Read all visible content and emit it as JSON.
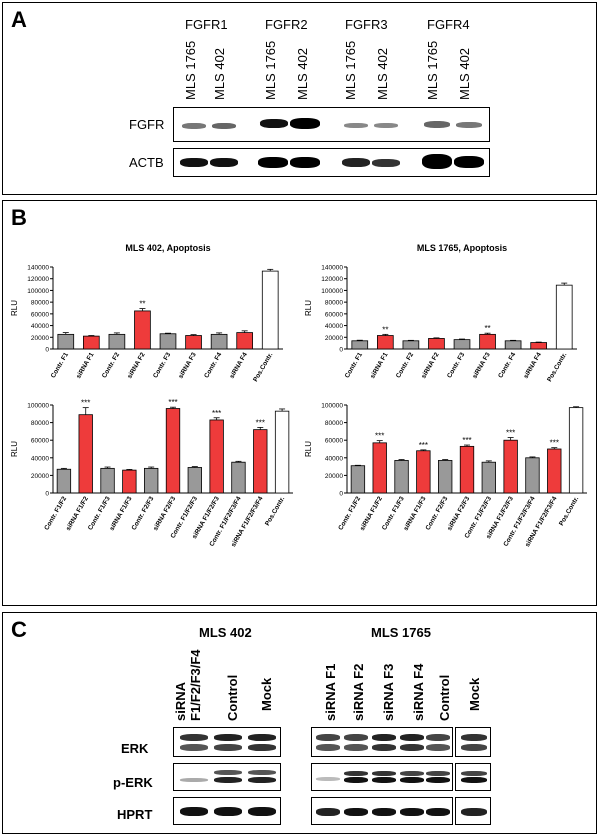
{
  "panelA": {
    "letter": "A",
    "groups": [
      "FGFR1",
      "FGFR2",
      "FGFR3",
      "FGFR4"
    ],
    "samples": [
      "MLS 1765",
      "MLS 402"
    ],
    "rows": [
      "FGFR",
      "ACTB"
    ]
  },
  "panelB": {
    "letter": "B"
  },
  "panelC": {
    "letter": "C",
    "left": {
      "title": "MLS 402",
      "lanes": [
        "siRNA F1/F2/F3/F4",
        "Control",
        "Mock"
      ]
    },
    "right": {
      "title": "MLS 1765",
      "lanes": [
        "siRNA F1",
        "siRNA F2",
        "siRNA F3",
        "siRNA F4",
        "Control",
        "Mock"
      ]
    },
    "rows": [
      "ERK",
      "p-ERK",
      "HPRT"
    ]
  },
  "colors": {
    "red": "#ee3b3b",
    "gray": "#999999",
    "white": "#ffffff"
  },
  "chart_data": [
    {
      "type": "bar",
      "title": "MLS 402, Apoptosis",
      "ylabel": "RLU",
      "ylim": [
        0,
        140000
      ],
      "yticks": [
        0,
        20000,
        40000,
        60000,
        80000,
        100000,
        120000,
        140000
      ],
      "categories": [
        "Contr. F1",
        "siRNA F1",
        "Contr. F2",
        "siRNA F2",
        "Contr. F3",
        "siRNA F3",
        "Contr. F4",
        "siRNA F4",
        "Pos.Contr."
      ],
      "values": [
        25000,
        22000,
        25000,
        65000,
        26000,
        23000,
        25000,
        28000,
        133000
      ],
      "errors": [
        3000,
        1000,
        2500,
        4000,
        1000,
        1500,
        2500,
        3000,
        3000
      ],
      "colors": [
        "gray",
        "red",
        "gray",
        "red",
        "gray",
        "red",
        "gray",
        "red",
        "white"
      ],
      "annotations": [
        "",
        "",
        "",
        "**",
        "",
        "",
        "",
        "",
        ""
      ]
    },
    {
      "type": "bar",
      "title": "MLS 1765, Apoptosis",
      "ylabel": "RLU",
      "ylim": [
        0,
        140000
      ],
      "yticks": [
        0,
        20000,
        40000,
        60000,
        80000,
        100000,
        120000,
        140000
      ],
      "categories": [
        "Contr. F1",
        "siRNA F1",
        "Contr. F2",
        "siRNA F2",
        "Contr. F3",
        "siRNA F3",
        "Contr. F4",
        "siRNA F4",
        "Pos.Contr."
      ],
      "values": [
        14000,
        23000,
        14000,
        18000,
        16000,
        25000,
        14000,
        11000,
        109000
      ],
      "errors": [
        1000,
        2000,
        800,
        1000,
        1000,
        2000,
        800,
        800,
        3500
      ],
      "colors": [
        "gray",
        "red",
        "gray",
        "red",
        "gray",
        "red",
        "gray",
        "red",
        "white"
      ],
      "annotations": [
        "",
        "**",
        "",
        "",
        "",
        "**",
        "",
        "",
        ""
      ]
    },
    {
      "type": "bar",
      "ylabel": "RLU",
      "ylim": [
        0,
        100000
      ],
      "yticks": [
        0,
        20000,
        40000,
        60000,
        80000,
        100000
      ],
      "categories": [
        "Contr. F1/F2",
        "siRNA F1/F2",
        "Contr. F1/F3",
        "siRNA F1/F3",
        "Contr. F2/F3",
        "siRNA F2/F3",
        "Contr. F1/F2/F3",
        "siRNA F1/F2/F3",
        "Contr. F1/F2/F3/F4",
        "siRNA F1/F2/F3/F4",
        "Pos.Contr."
      ],
      "values": [
        27000,
        89000,
        28000,
        26000,
        28000,
        96000,
        29000,
        83000,
        35000,
        72000,
        93000
      ],
      "errors": [
        1000,
        8000,
        1500,
        800,
        1500,
        1500,
        1000,
        2500,
        1000,
        2500,
        2500
      ],
      "colors": [
        "gray",
        "red",
        "gray",
        "red",
        "gray",
        "red",
        "gray",
        "red",
        "gray",
        "red",
        "white"
      ],
      "annotations": [
        "",
        "***",
        "",
        "",
        "",
        "***",
        "",
        "***",
        "",
        "***",
        ""
      ]
    },
    {
      "type": "bar",
      "ylabel": "RLU",
      "ylim": [
        0,
        100000
      ],
      "yticks": [
        0,
        20000,
        40000,
        60000,
        80000,
        100000
      ],
      "categories": [
        "Contr. F1/F2",
        "siRNA F1/F2",
        "Contr. F1/F3",
        "siRNA F1/F3",
        "Contr. F2/F3",
        "siRNA F2/F3",
        "Contr. F1/F2/F3",
        "siRNA F1/F2/F3",
        "Contr. F1/F2/F3/F4",
        "siRNA F1/F2/F3/F4",
        "Pos.Contr."
      ],
      "values": [
        31000,
        57000,
        37000,
        48000,
        37000,
        53000,
        35000,
        60000,
        40000,
        50000,
        97000
      ],
      "errors": [
        500,
        2500,
        1000,
        1000,
        1000,
        1500,
        1500,
        3000,
        1000,
        1500,
        1000
      ],
      "colors": [
        "gray",
        "red",
        "gray",
        "red",
        "gray",
        "red",
        "gray",
        "red",
        "gray",
        "red",
        "white"
      ],
      "annotations": [
        "",
        "***",
        "",
        "***",
        "",
        "***",
        "",
        "***",
        "",
        "***",
        ""
      ]
    }
  ]
}
